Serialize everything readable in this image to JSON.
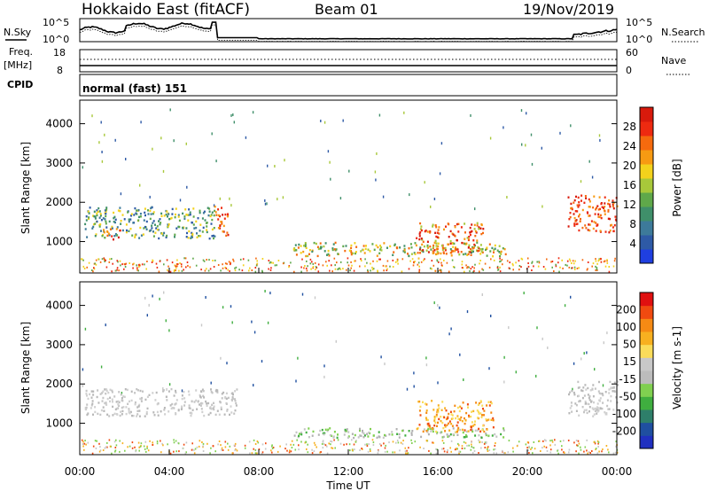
{
  "header": {
    "station": "Hokkaido East (fitACF)",
    "beam": "Beam 01",
    "date": "19/Nov/2019"
  },
  "aux_panels": {
    "nsky": {
      "label": "N.Sky",
      "tick_high": "10^5",
      "tick_low": "10^0"
    },
    "nsearch": {
      "label": "N.Search",
      "tick_high": "10^5",
      "tick_low": "10^0"
    },
    "freq": {
      "label_top": "Freq.",
      "label_bottom": "[MHz]",
      "tick_high": "18",
      "tick_low": "8"
    },
    "nave": {
      "label": "Nave",
      "tick_high": "60",
      "tick_low": "0"
    },
    "cpid": {
      "label": "CPID",
      "mode": "normal (fast) 151"
    }
  },
  "colors": {
    "power_scale": [
      "#1f3fe0",
      "#2e5aa6",
      "#3d7a9a",
      "#3f8f6a",
      "#5fa84a",
      "#a8c83a",
      "#f3d21c",
      "#f79a12",
      "#f56a0e",
      "#ee2a10",
      "#d81a0c"
    ],
    "velocity_scale": [
      "#e01010",
      "#f04a10",
      "#f58a14",
      "#f7b020",
      "#fadc5a",
      "#c8c8c8",
      "#bcbcbc",
      "#80d050",
      "#3fae3f",
      "#2e7f6a",
      "#1f4fa0",
      "#2030c0"
    ],
    "gray": "#c4c4c4"
  },
  "chart_data": [
    {
      "type": "heatmap",
      "panel": "power",
      "ylabel": "Slant Range [km]",
      "y_ticks": [
        "1000",
        "2000",
        "3000",
        "4000"
      ],
      "ylim": [
        200,
        4600
      ],
      "xlim": [
        0,
        24
      ],
      "colorbar_label": "Power [dB]",
      "colorbar_ticks": [
        "4",
        "8",
        "12",
        "16",
        "20",
        "24",
        "28"
      ],
      "regions": [
        {
          "t0": 0.2,
          "t1": 6.0,
          "r0": 1100,
          "r1": 1900,
          "level": "blue-green"
        },
        {
          "t0": 1.0,
          "t1": 1.8,
          "r0": 1050,
          "r1": 1350,
          "level": "red"
        },
        {
          "t0": 6.0,
          "t1": 6.6,
          "r0": 1150,
          "r1": 1950,
          "level": "red"
        },
        {
          "t0": 9.5,
          "t1": 19.0,
          "r0": 650,
          "r1": 1000,
          "level": "orange-green"
        },
        {
          "t0": 15.0,
          "t1": 18.0,
          "r0": 700,
          "r1": 1500,
          "level": "red-orange"
        },
        {
          "t0": 21.8,
          "t1": 24.0,
          "r0": 1250,
          "r1": 2200,
          "level": "red"
        }
      ]
    },
    {
      "type": "heatmap",
      "panel": "velocity",
      "ylabel": "Slant Range [km]",
      "y_ticks": [
        "1000",
        "2000",
        "3000",
        "4000"
      ],
      "ylim": [
        200,
        4600
      ],
      "xlim": [
        0,
        24
      ],
      "colorbar_label": "Velocity [m s-1]",
      "colorbar_ticks": [
        "200",
        "100",
        "50",
        "15",
        "-15",
        "-50",
        "-100",
        "-200"
      ],
      "x_ticks": [
        "00:00",
        "04:00",
        "08:00",
        "12:00",
        "16:00",
        "20:00",
        "00:00"
      ],
      "xlabel": "Time UT",
      "regions": [
        {
          "t0": 0.2,
          "t1": 7.0,
          "r0": 1200,
          "r1": 1900,
          "level": "gray"
        },
        {
          "t0": 9.5,
          "t1": 19.0,
          "r0": 650,
          "r1": 900,
          "level": "gray-green"
        },
        {
          "t0": 15.0,
          "t1": 18.5,
          "r0": 800,
          "r1": 1600,
          "level": "orange"
        },
        {
          "t0": 21.8,
          "t1": 24.0,
          "r0": 1200,
          "r1": 2100,
          "level": "gray"
        }
      ]
    }
  ]
}
